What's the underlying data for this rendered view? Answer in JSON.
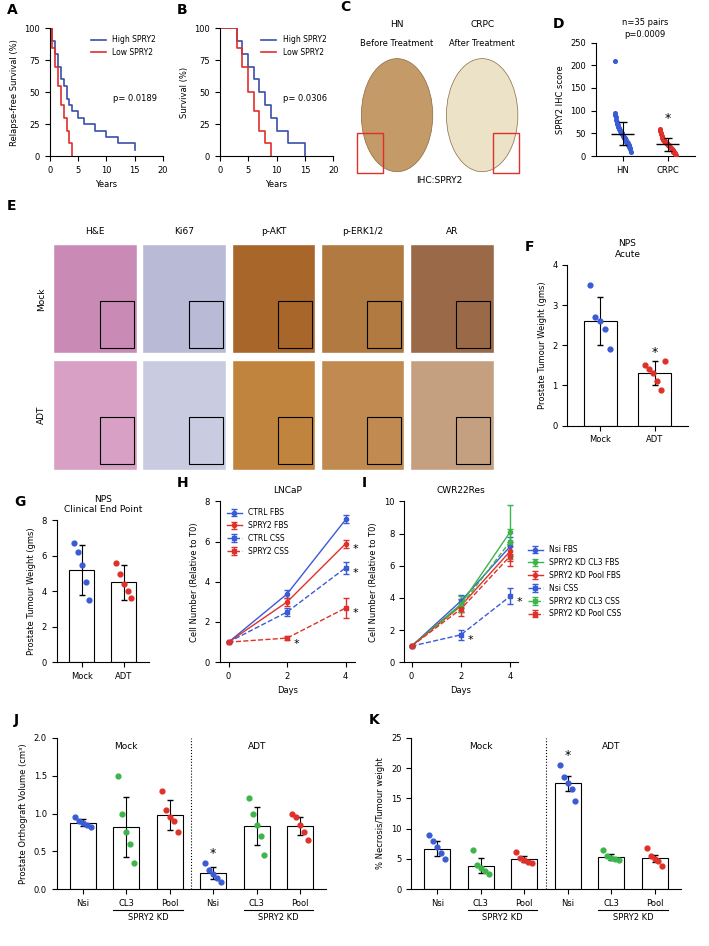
{
  "chart_data": [
    {
      "panel": "A",
      "type": "step",
      "x_label": "Years",
      "y_label": "Relapse-free Survival (%)",
      "xlim": [
        0,
        20
      ],
      "xticks": [
        0,
        5,
        10,
        15,
        20
      ],
      "ylim": [
        0,
        100
      ],
      "yticks": [
        0,
        25,
        50,
        75,
        100
      ],
      "legend": "upper right",
      "series": [
        {
          "name": "High SPRY2",
          "color": "#3a4fa8",
          "x": [
            0,
            0.5,
            1,
            1.5,
            2,
            2.5,
            3,
            3.5,
            4,
            5,
            6,
            8,
            10,
            12,
            15
          ],
          "values": [
            100,
            90,
            80,
            70,
            60,
            55,
            45,
            40,
            35,
            30,
            25,
            20,
            15,
            10,
            5
          ]
        },
        {
          "name": "Low SPRY2",
          "color": "#e0302a",
          "x": [
            0,
            0.5,
            1,
            1.5,
            2,
            2.5,
            3,
            3.5,
            4
          ],
          "values": [
            100,
            85,
            70,
            55,
            40,
            30,
            20,
            10,
            0
          ]
        }
      ],
      "annotations": [
        {
          "text": "p= 0.0189"
        }
      ]
    },
    {
      "panel": "B",
      "type": "step",
      "x_label": "Years",
      "y_label": "Survival (%)",
      "xlim": [
        0,
        20
      ],
      "xticks": [
        0,
        5,
        10,
        15,
        20
      ],
      "ylim": [
        0,
        100
      ],
      "yticks": [
        0,
        25,
        50,
        75,
        100
      ],
      "legend": "upper right",
      "series": [
        {
          "name": "High SPRY2",
          "color": "#3a4fa8",
          "x": [
            0,
            3,
            4,
            5,
            6,
            7,
            8,
            9,
            10,
            12,
            15
          ],
          "values": [
            100,
            90,
            80,
            70,
            60,
            50,
            40,
            30,
            20,
            10,
            0
          ]
        },
        {
          "name": "Low SPRY2",
          "color": "#e0302a",
          "x": [
            0,
            3,
            4,
            5,
            6,
            7,
            8,
            9
          ],
          "values": [
            100,
            85,
            70,
            50,
            35,
            20,
            10,
            0
          ]
        }
      ],
      "annotations": [
        {
          "text": "p= 0.0306"
        }
      ]
    },
    {
      "panel": "D",
      "type": "dot_plot",
      "y_label": "SPRY2 IHC score",
      "categories": [
        "HN",
        "CRPC"
      ],
      "colors": [
        "#3a5bd6",
        "#e0302a"
      ],
      "ylim": [
        0,
        250
      ],
      "yticks": [
        0,
        50,
        100,
        150,
        200,
        250
      ],
      "points": [
        [
          210,
          95,
          90,
          85,
          80,
          75,
          70,
          68,
          65,
          62,
          60,
          58,
          55,
          52,
          50,
          50,
          48,
          45,
          45,
          42,
          40,
          40,
          38,
          35,
          35,
          32,
          30,
          30,
          28,
          25,
          25,
          20,
          18,
          15,
          10
        ],
        [
          60,
          55,
          50,
          48,
          45,
          42,
          40,
          38,
          36,
          35,
          34,
          32,
          30,
          30,
          28,
          28,
          26,
          25,
          25,
          24,
          22,
          20,
          20,
          18,
          18,
          16,
          15,
          14,
          12,
          10,
          10,
          8,
          6,
          5,
          2
        ]
      ],
      "values": [
        49,
        26
      ],
      "errors": [
        25,
        14
      ],
      "annotations": [
        {
          "text": "n=35 pairs"
        },
        {
          "text": "p=0.0009"
        },
        {
          "text": "*",
          "category": "CRPC"
        }
      ]
    },
    {
      "panel": "F",
      "type": "bar",
      "title": "NPS\nAcute",
      "y_label": "Prostate Tumour Weight (gms)",
      "categories": [
        "Mock",
        "ADT"
      ],
      "colors": [
        "#3a5bd6",
        "#e0302a"
      ],
      "ylim": [
        0,
        4
      ],
      "yticks": [
        0,
        1,
        2,
        3,
        4
      ],
      "values": [
        2.6,
        1.3
      ],
      "errors": [
        0.6,
        0.3
      ],
      "points": [
        [
          3.5,
          2.7,
          2.6,
          2.4,
          1.9
        ],
        [
          1.5,
          1.4,
          1.3,
          1.1,
          0.9,
          1.6
        ]
      ],
      "annotations": [
        {
          "text": "*",
          "category": "ADT"
        }
      ]
    },
    {
      "panel": "G",
      "type": "bar",
      "title": "NPS\nClinical End Point",
      "y_label": "Prostate Tumour Weight (gms)",
      "categories": [
        "Mock",
        "ADT"
      ],
      "colors": [
        "#3a5bd6",
        "#e0302a"
      ],
      "ylim": [
        0,
        8
      ],
      "yticks": [
        0,
        2,
        4,
        6,
        8
      ],
      "values": [
        5.2,
        4.5
      ],
      "errors": [
        1.4,
        1.0
      ],
      "points": [
        [
          6.7,
          6.2,
          5.5,
          4.5,
          3.5
        ],
        [
          5.6,
          5.0,
          4.4,
          4.0,
          3.6
        ]
      ],
      "annotations": []
    },
    {
      "panel": "H",
      "type": "line",
      "title": "LNCaP",
      "x_label": "Days",
      "y_label": "Cell Number (Relative to T0)",
      "x": [
        0,
        2,
        4
      ],
      "xlim": [
        -0.3,
        4.3
      ],
      "xticks": [
        0,
        2,
        4
      ],
      "ylim": [
        0,
        8
      ],
      "yticks": [
        0,
        2,
        4,
        6,
        8
      ],
      "legend": "upper left",
      "series": [
        {
          "name": "CTRL FBS",
          "color": "#3a5bd6",
          "line_style": "solid",
          "marker": "circle",
          "values": [
            1,
            3.4,
            7.1
          ],
          "errors": [
            0,
            0.2,
            0.2
          ]
        },
        {
          "name": "SPRY2 FBS",
          "color": "#e0302a",
          "line_style": "solid",
          "marker": "circle",
          "values": [
            1,
            3.0,
            5.9
          ],
          "errors": [
            0,
            0.2,
            0.2
          ]
        },
        {
          "name": "CTRL CSS",
          "color": "#3a5bd6",
          "line_style": "dashed",
          "marker": "square",
          "values": [
            1,
            2.5,
            4.7
          ],
          "errors": [
            0,
            0.2,
            0.3
          ]
        },
        {
          "name": "SPRY2 CSS",
          "color": "#e0302a",
          "line_style": "dashed",
          "marker": "square",
          "values": [
            1,
            1.2,
            2.7
          ],
          "errors": [
            0,
            0.1,
            0.5
          ]
        }
      ],
      "annotations": [
        {
          "text": "*",
          "series": "SPRY2 FBS",
          "x": 4
        },
        {
          "text": "*",
          "series": "CTRL CSS",
          "x": 4
        },
        {
          "text": "*",
          "series": "SPRY2 CSS",
          "x": 2
        },
        {
          "text": "*",
          "series": "SPRY2 CSS",
          "x": 4
        }
      ]
    },
    {
      "panel": "I",
      "type": "line",
      "title": "CWR22Res",
      "x_label": "Days",
      "y_label": "Cell Number (Relative to T0)",
      "x": [
        0,
        2,
        4
      ],
      "xlim": [
        -0.3,
        4.3
      ],
      "xticks": [
        0,
        2,
        4
      ],
      "ylim": [
        0,
        10
      ],
      "yticks": [
        0,
        2,
        4,
        6,
        8,
        10
      ],
      "legend": "right",
      "series": [
        {
          "name": "Nsi FBS",
          "color": "#3a5bd6",
          "line_style": "solid",
          "marker": "circle",
          "values": [
            1,
            3.8,
            7.2
          ],
          "errors": [
            0,
            0.4,
            0.6
          ]
        },
        {
          "name": "SPRY2 KD CL3 FBS",
          "color": "#3cb54a",
          "line_style": "solid",
          "marker": "circle",
          "values": [
            1,
            3.6,
            8.1
          ],
          "errors": [
            0,
            0.5,
            1.7
          ]
        },
        {
          "name": "SPRY2 KD Pool FBS",
          "color": "#e0302a",
          "line_style": "solid",
          "marker": "circle",
          "values": [
            1,
            3.5,
            6.9
          ],
          "errors": [
            0,
            0.4,
            0.6
          ]
        },
        {
          "name": "Nsi CSS",
          "color": "#3a5bd6",
          "line_style": "dashed",
          "marker": "square",
          "values": [
            1,
            1.7,
            4.1
          ],
          "errors": [
            0,
            0.3,
            0.5
          ]
        },
        {
          "name": "SPRY2 KD CL3 CSS",
          "color": "#3cb54a",
          "line_style": "dashed",
          "marker": "square",
          "values": [
            1,
            3.5,
            7.5
          ],
          "errors": [
            0,
            0.4,
            0.8
          ]
        },
        {
          "name": "SPRY2 KD Pool CSS",
          "color": "#e0302a",
          "line_style": "dashed",
          "marker": "square",
          "values": [
            1,
            3.3,
            6.6
          ],
          "errors": [
            0,
            0.4,
            0.6
          ]
        }
      ],
      "annotations": [
        {
          "text": "*",
          "series": "Nsi CSS",
          "x": 2
        },
        {
          "text": "*",
          "series": "Nsi CSS",
          "x": 4
        }
      ]
    },
    {
      "panel": "J",
      "type": "grouped_bar",
      "y_label": "Prostate Orthograft Volume (cm³)",
      "ylim": [
        0,
        2
      ],
      "yticks": [
        {
          "value": 0,
          "label": "0.0"
        },
        {
          "value": 0.5,
          "label": "0.5"
        },
        {
          "value": 1,
          "label": "1.0"
        },
        {
          "value": 1.5,
          "label": "1.5"
        },
        {
          "value": 2,
          "label": "2.0"
        }
      ],
      "bracket": {
        "label": "SPRY2 KD",
        "categories": [
          "CL3",
          "Pool"
        ]
      },
      "groups": [
        {
          "name": "Mock",
          "categories": [
            "Nsi",
            "CL3",
            "Pool"
          ],
          "colors": [
            "#3a5bd6",
            "#3cb54a",
            "#e0302a"
          ],
          "values": [
            0.88,
            0.82,
            0.98
          ],
          "errors": [
            0.05,
            0.4,
            0.2
          ],
          "points": [
            [
              0.95,
              0.9,
              0.88,
              0.85,
              0.82
            ],
            [
              1.5,
              1.0,
              0.75,
              0.6,
              0.35
            ],
            [
              1.3,
              1.05,
              0.95,
              0.9,
              0.75
            ]
          ]
        },
        {
          "name": "ADT",
          "categories": [
            "Nsi",
            "CL3",
            "Pool"
          ],
          "colors": [
            "#3a5bd6",
            "#3cb54a",
            "#e0302a"
          ],
          "values": [
            0.21,
            0.84,
            0.84
          ],
          "errors": [
            0.08,
            0.25,
            0.12
          ],
          "points": [
            [
              0.35,
              0.25,
              0.2,
              0.15,
              0.1
            ],
            [
              1.2,
              1.0,
              0.85,
              0.7,
              0.45
            ],
            [
              1.0,
              0.95,
              0.85,
              0.75,
              0.65
            ]
          ]
        }
      ],
      "annotations": [
        {
          "text": "*",
          "group": "ADT",
          "category": "Nsi"
        }
      ]
    },
    {
      "panel": "K",
      "type": "grouped_bar",
      "y_label": "% Necrosis/Tumour weight",
      "ylim": [
        0,
        25
      ],
      "yticks": [
        0,
        5,
        10,
        15,
        20,
        25
      ],
      "bracket": {
        "label": "SPRY2 KD",
        "categories": [
          "CL3",
          "Pool"
        ]
      },
      "groups": [
        {
          "name": "Mock",
          "categories": [
            "Nsi",
            "CL3",
            "Pool"
          ],
          "colors": [
            "#3a5bd6",
            "#3cb54a",
            "#e0302a"
          ],
          "values": [
            6.7,
            3.9,
            5.0
          ],
          "errors": [
            1.2,
            1.2,
            0.5
          ],
          "points": [
            [
              9,
              8,
              7,
              6,
              5
            ],
            [
              6.5,
              4,
              3.5,
              3,
              2.5
            ],
            [
              6.2,
              5.2,
              4.8,
              4.5,
              4.3
            ]
          ]
        },
        {
          "name": "ADT",
          "categories": [
            "Nsi",
            "CL3",
            "Pool"
          ],
          "colors": [
            "#3a5bd6",
            "#3cb54a",
            "#e0302a"
          ],
          "values": [
            17.5,
            5.4,
            5.1
          ],
          "errors": [
            1.2,
            0.5,
            0.6
          ],
          "points": [
            [
              20.5,
              18.5,
              17.5,
              16.5,
              14.5
            ],
            [
              6.5,
              5.5,
              5.2,
              5.0,
              4.8
            ],
            [
              6.8,
              5.5,
              5.0,
              4.6,
              3.8
            ]
          ]
        }
      ],
      "annotations": [
        {
          "text": "*",
          "group": "ADT",
          "category": "Nsi"
        }
      ]
    }
  ],
  "image_panels": [
    {
      "panel": "C",
      "images": [
        {
          "label": "HN",
          "sublabel": "Before Treatment"
        },
        {
          "label": "CRPC",
          "sublabel": "After Treatment"
        }
      ],
      "caption": "IHC:SPRY2"
    },
    {
      "panel": "E",
      "columns": [
        "H&E",
        "Ki67",
        "p-AKT",
        "p-ERK1/2",
        "AR"
      ],
      "rows": [
        "Mock",
        "ADT"
      ]
    }
  ]
}
